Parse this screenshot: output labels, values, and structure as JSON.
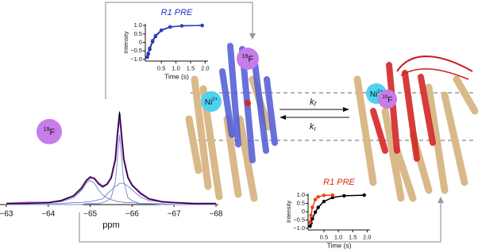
{
  "chart_data": [
    {
      "type": "line",
      "x_label": "ppm",
      "x": [
        -63,
        -63.5,
        -64,
        -64.3,
        -64.6,
        -64.8,
        -64.9,
        -65,
        -65.1,
        -65.2,
        -65.3,
        -65.4,
        -65.5,
        -65.6,
        -65.65,
        -65.7,
        -65.75,
        -65.8,
        -65.9,
        -66,
        -66.2,
        -66.4,
        -66.7,
        -67,
        -67.5,
        -68
      ],
      "xlim": [
        -63,
        -68
      ],
      "xticks": [
        {
          "value": -63,
          "label": "−63"
        },
        {
          "value": -64,
          "label": "−64"
        },
        {
          "value": -65,
          "label": "−65"
        },
        {
          "value": -66,
          "label": "−66"
        },
        {
          "value": -67,
          "label": "−67"
        },
        {
          "value": -68,
          "label": "−68"
        }
      ],
      "ylim": [
        0,
        1.05
      ],
      "series": [
        {
          "color": "#7f8fd0",
          "width": 1,
          "values": [
            0,
            0.01,
            0.02,
            0.03,
            0.07,
            0.15,
            0.22,
            0.25,
            0.22,
            0.15,
            0.1,
            0.07,
            0.05,
            0.04,
            0.03,
            0.03,
            0.03,
            0.02,
            0.02,
            0.02,
            0.01,
            0.01,
            0.01,
            0,
            0,
            0
          ]
        },
        {
          "color": "#7f8fd0",
          "width": 1,
          "values": [
            0,
            0,
            0,
            0,
            0,
            0,
            0.01,
            0.01,
            0.01,
            0.01,
            0.02,
            0.04,
            0.07,
            0.24,
            0.48,
            0.72,
            0.48,
            0.24,
            0.07,
            0.04,
            0.01,
            0.01,
            0,
            0,
            0,
            0
          ]
        },
        {
          "color": "#7f8fd0",
          "width": 1,
          "values": [
            0,
            0.01,
            0.01,
            0.01,
            0.02,
            0.02,
            0.03,
            0.03,
            0.04,
            0.05,
            0.06,
            0.11,
            0.15,
            0.19,
            0.2,
            0.22,
            0.22,
            0.22,
            0.19,
            0.15,
            0.08,
            0.04,
            0.03,
            0.02,
            0.01,
            0.01
          ]
        },
        {
          "color": "#9a2fc4",
          "width": 2.2,
          "values": [
            0.01,
            0.02,
            0.02,
            0.04,
            0.09,
            0.17,
            0.24,
            0.28,
            0.27,
            0.22,
            0.19,
            0.21,
            0.28,
            0.47,
            0.73,
            0.94,
            0.7,
            0.47,
            0.28,
            0.2,
            0.12,
            0.06,
            0.03,
            0.02,
            0.01,
            0.01
          ]
        },
        {
          "color": "#000000",
          "width": 1,
          "values": [
            0.01,
            0.01,
            0.02,
            0.04,
            0.09,
            0.18,
            0.25,
            0.29,
            0.27,
            0.21,
            0.18,
            0.21,
            0.27,
            0.46,
            0.71,
            0.96,
            0.72,
            0.48,
            0.28,
            0.2,
            0.11,
            0.06,
            0.03,
            0.02,
            0.01,
            0.01
          ]
        }
      ]
    },
    {
      "type": "line",
      "title": "R1 PRE",
      "title_color": "#2233cc",
      "x_label": "Time (s)",
      "y_label": "Intensity",
      "x": [
        0.02,
        0.05,
        0.1,
        0.2,
        0.3,
        0.5,
        0.8,
        1.2,
        1.9
      ],
      "xlim": [
        -0.05,
        2.1
      ],
      "xticks": [
        0.5,
        {
          "value": 1,
          "label": "1.0"
        },
        1.5,
        {
          "value": 2,
          "label": "2.0"
        }
      ],
      "ylim": [
        -1.1,
        1.1
      ],
      "yticks": [
        {
          "value": -1,
          "label": "−1.0"
        },
        {
          "value": -0.5,
          "label": "−0.5"
        },
        0,
        0.5,
        {
          "value": 1,
          "label": "1.0"
        }
      ],
      "series": [
        {
          "color": "#000000",
          "width": 1.5,
          "markers": true,
          "values": [
            -0.87,
            -0.68,
            -0.4,
            0.05,
            0.36,
            0.71,
            0.91,
            0.98,
            1.0
          ]
        },
        {
          "color": "#2b3fd6",
          "width": 1.5,
          "markers": true,
          "values": [
            -0.85,
            -0.64,
            -0.34,
            0.1,
            0.4,
            0.73,
            0.92,
            0.98,
            1.0
          ]
        }
      ]
    },
    {
      "type": "line",
      "title": "R1 PRE",
      "title_color": "#dd2a10",
      "x_label": "Time (s)",
      "y_label": "Intensity",
      "x": [
        0.02,
        0.05,
        0.1,
        0.2,
        0.3,
        0.5,
        0.8,
        1.2,
        1.9
      ],
      "xlim": [
        -0.05,
        2.1
      ],
      "xticks": [
        0.5,
        {
          "value": 1,
          "label": "1.0"
        },
        1.5,
        {
          "value": 2,
          "label": "2.0"
        }
      ],
      "ylim": [
        -1.1,
        1.1
      ],
      "yticks": [
        {
          "value": -1,
          "label": "−1.0"
        },
        {
          "value": -0.5,
          "label": "−0.5"
        },
        0,
        0.5,
        {
          "value": 1,
          "label": "1.0"
        }
      ],
      "series": [
        {
          "color": "#000000",
          "width": 1.5,
          "markers": true,
          "values": [
            -0.87,
            -0.69,
            -0.43,
            -0.03,
            0.26,
            0.62,
            0.86,
            0.96,
            1.0
          ]
        },
        {
          "color": "#f04010",
          "width": 1.5,
          "markers": true,
          "values": [
            -0.64,
            -0.21,
            0.26,
            0.73,
            0.9,
            0.99,
            1.0,
            null,
            null
          ]
        }
      ]
    }
  ],
  "labels": {
    "f19_sup": "19",
    "f19": "F",
    "ni": "Ni",
    "ni_sup": "2+",
    "k": "k",
    "kf_sub": "f",
    "kr_sub": "r"
  }
}
